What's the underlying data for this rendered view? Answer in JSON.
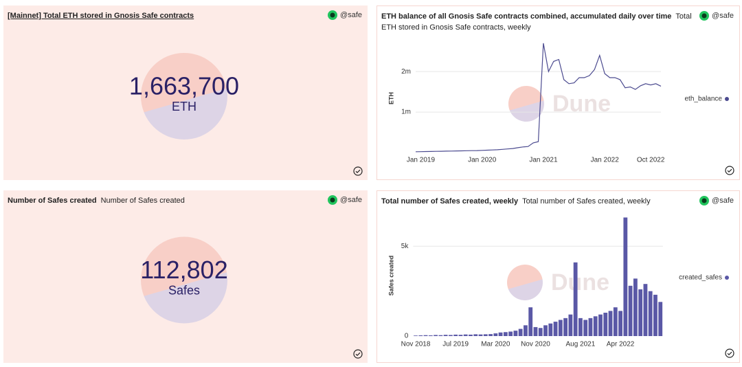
{
  "chart_data": [
    {
      "type": "counter",
      "title": "[Mainnet] Total ETH stored in Gnosis Safe contracts",
      "author": "@safe",
      "values": [
        1663700
      ],
      "value_labels": [
        "1,663,700"
      ],
      "unit": "ETH"
    },
    {
      "type": "line",
      "title": "ETH balance of all Gnosis Safe contracts combined, accumulated daily over time",
      "subtitle": "Total ETH stored in Gnosis Safe contracts, weekly",
      "author": "@safe",
      "watermark": "Dune",
      "ylabel": "ETH",
      "x": [
        "2018-12",
        "2019-01",
        "2019-02",
        "2019-03",
        "2019-04",
        "2019-05",
        "2019-06",
        "2019-07",
        "2019-08",
        "2019-09",
        "2019-10",
        "2019-11",
        "2019-12",
        "2020-01",
        "2020-02",
        "2020-03",
        "2020-04",
        "2020-05",
        "2020-06",
        "2020-07",
        "2020-08",
        "2020-09",
        "2020-10",
        "2020-11",
        "2020-12",
        "2021-01",
        "2021-02",
        "2021-03",
        "2021-04",
        "2021-05",
        "2021-06",
        "2021-07",
        "2021-08",
        "2021-09",
        "2021-10",
        "2021-11",
        "2021-12",
        "2022-01",
        "2022-02",
        "2022-03",
        "2022-04",
        "2022-05",
        "2022-06",
        "2022-07",
        "2022-08",
        "2022-09",
        "2022-10",
        "2022-11",
        "2022-12"
      ],
      "series": [
        {
          "name": "eth_balance",
          "color": "#4b4a8f",
          "values": [
            20000,
            22000,
            25000,
            27000,
            30000,
            32000,
            35000,
            37000,
            40000,
            42000,
            45000,
            47000,
            50000,
            55000,
            60000,
            65000,
            70000,
            80000,
            90000,
            100000,
            120000,
            140000,
            150000,
            240000,
            270000,
            2700000,
            2000000,
            2250000,
            2300000,
            1800000,
            1700000,
            1720000,
            1850000,
            1850000,
            1900000,
            2050000,
            2400000,
            1950000,
            1850000,
            1850000,
            1800000,
            1600000,
            1620000,
            1560000,
            1650000,
            1700000,
            1670000,
            1700000,
            1640000
          ]
        }
      ],
      "xlim": [
        "2018-12",
        "2022-12"
      ],
      "xticks": [
        {
          "value": "2019-01",
          "label": "Jan 2019"
        },
        {
          "value": "2020-01",
          "label": "Jan 2020"
        },
        {
          "value": "2021-01",
          "label": "Jan 2021"
        },
        {
          "value": "2022-01",
          "label": "Jan 2022"
        },
        {
          "value": "2022-10",
          "label": "Oct 2022"
        }
      ],
      "ylim": [
        0,
        2800000
      ],
      "yticks": [
        {
          "value": 1000000,
          "label": "1m"
        },
        {
          "value": 2000000,
          "label": "2m"
        }
      ],
      "grid": true
    },
    {
      "type": "counter",
      "title": "Number of Safes created",
      "subtitle": "Number of Safes created",
      "author": "@safe",
      "values": [
        112802
      ],
      "value_labels": [
        "112,802"
      ],
      "unit": "Safes"
    },
    {
      "type": "bar",
      "title": "Total number of Safes created, weekly",
      "subtitle": "Total number of Safes created, weekly",
      "author": "@safe",
      "watermark": "Dune",
      "ylabel": "Safes created",
      "categories": [
        "Nov 2018",
        null,
        null,
        null,
        null,
        null,
        null,
        null,
        "Jul 2019",
        null,
        null,
        null,
        null,
        null,
        null,
        null,
        "Mar 2020",
        null,
        null,
        null,
        null,
        null,
        null,
        null,
        "Nov 2020",
        null,
        null,
        null,
        null,
        null,
        null,
        null,
        null,
        "Aug 2021",
        null,
        null,
        null,
        null,
        null,
        null,
        null,
        "Apr 2022",
        null,
        null,
        null,
        null,
        null,
        null,
        null,
        null
      ],
      "series": [
        {
          "name": "created_safes",
          "color": "#5a58a6",
          "values": [
            30,
            40,
            50,
            40,
            60,
            50,
            70,
            60,
            80,
            70,
            90,
            80,
            100,
            90,
            100,
            110,
            150,
            200,
            220,
            250,
            300,
            400,
            600,
            1600,
            500,
            450,
            600,
            700,
            800,
            900,
            1000,
            1200,
            4100,
            1000,
            900,
            1000,
            1100,
            1200,
            1300,
            1400,
            1600,
            1400,
            6600,
            2800,
            3200,
            2600,
            2900,
            2500,
            2300,
            1900
          ]
        }
      ],
      "ylim": [
        0,
        7000
      ],
      "yticks": [
        0,
        {
          "value": 5000,
          "label": "5k"
        }
      ],
      "grid": true
    }
  ]
}
